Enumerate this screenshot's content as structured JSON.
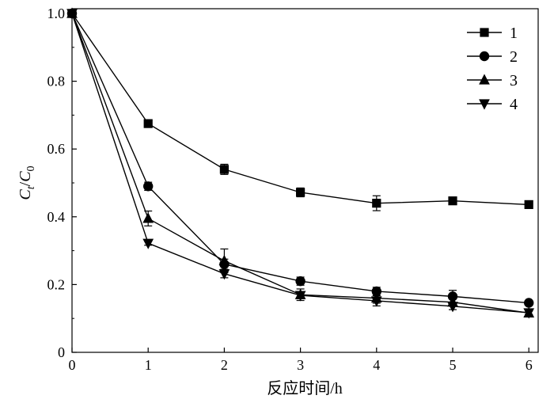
{
  "chart_data": {
    "type": "line",
    "title": "",
    "xlabel": "反应时间/h",
    "ylabel_main_1": "C",
    "ylabel_sub_1": "t",
    "ylabel_slash": "/",
    "ylabel_main_2": "C",
    "ylabel_sub_2": "0",
    "xlim": [
      0,
      6.1
    ],
    "ylim": [
      0,
      1.0
    ],
    "x_ticks": [
      "0",
      "1",
      "2",
      "3",
      "4",
      "5",
      "6"
    ],
    "y_ticks": [
      "0",
      "0.2",
      "0.4",
      "0.6",
      "0.8",
      "1.0"
    ],
    "grid": false,
    "legend_position": "top-right",
    "x": [
      0,
      1,
      2,
      3,
      4,
      5,
      6
    ],
    "series": [
      {
        "name": "1",
        "marker": "square",
        "values": [
          1.0,
          0.675,
          0.54,
          0.472,
          0.44,
          0.447,
          0.436
        ],
        "errors": [
          0,
          0.008,
          0.015,
          0.013,
          0.022,
          0.008,
          0.006
        ]
      },
      {
        "name": "2",
        "marker": "circle",
        "values": [
          1.0,
          0.49,
          0.26,
          0.21,
          0.18,
          0.165,
          0.146
        ],
        "errors": [
          0,
          0.012,
          0.015,
          0.012,
          0.012,
          0.018,
          0.006
        ]
      },
      {
        "name": "3",
        "marker": "triangle-up",
        "values": [
          1.0,
          0.395,
          0.27,
          0.17,
          0.16,
          0.148,
          0.116
        ],
        "errors": [
          0,
          0.022,
          0.035,
          0.017,
          0.015,
          0.012,
          0.006
        ]
      },
      {
        "name": "4",
        "marker": "triangle-down",
        "values": [
          1.0,
          0.322,
          0.232,
          0.168,
          0.152,
          0.136,
          0.117
        ],
        "errors": [
          0,
          0.006,
          0.012,
          0.01,
          0.015,
          0.01,
          0.005
        ]
      }
    ]
  }
}
